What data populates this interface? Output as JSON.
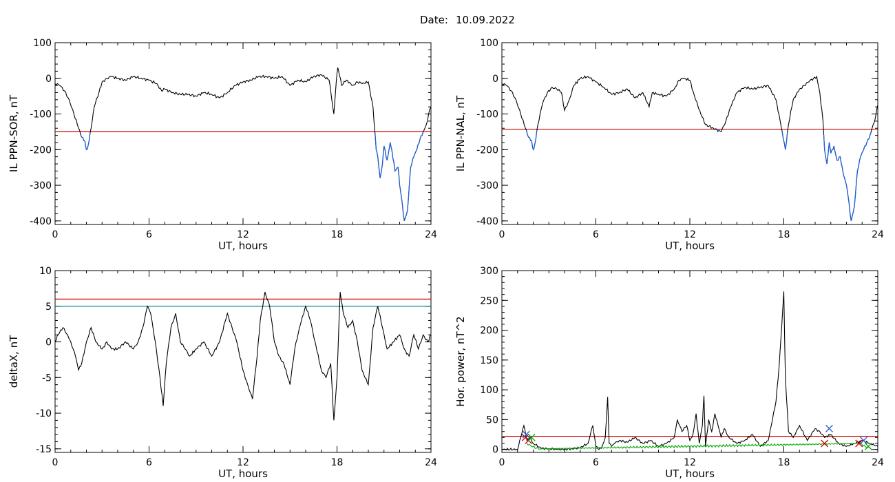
{
  "header": {
    "date_label": "Date:",
    "date_value": "10.09.2022"
  },
  "chart_data": [
    {
      "type": "line",
      "ylabel": "IL PPN-SOR, nT",
      "xlabel": "UT, hours",
      "xlim": [
        0,
        24
      ],
      "ylim": [
        -410,
        100
      ],
      "xticks": [
        0,
        6,
        12,
        18,
        24
      ],
      "yticks": [
        100,
        0,
        -100,
        -200,
        -300,
        -400
      ],
      "threshold": {
        "value": -150,
        "color": "#cc0000"
      },
      "highlight_color": "#1f5fd6",
      "series": [
        {
          "color": "#000000",
          "highlight_below": -150,
          "x": [
            0,
            0.3,
            0.6,
            0.9,
            1.2,
            1.5,
            1.7,
            1.9,
            2.0,
            2.1,
            2.3,
            2.5,
            2.8,
            3.0,
            3.3,
            3.6,
            4.0,
            4.5,
            5.0,
            5.5,
            6.0,
            6.5,
            6.8,
            7.0,
            7.5,
            8.0,
            8.5,
            9.0,
            9.5,
            10.0,
            10.5,
            11.0,
            11.5,
            12.0,
            12.5,
            13.0,
            13.5,
            14.0,
            14.5,
            15.0,
            15.5,
            16.0,
            16.5,
            17.0,
            17.5,
            17.8,
            17.95,
            18.05,
            18.15,
            18.3,
            18.6,
            19.0,
            19.3,
            19.6,
            20.0,
            20.3,
            20.5,
            20.6,
            20.75,
            20.9,
            21.0,
            21.2,
            21.4,
            21.5,
            21.7,
            21.9,
            22.0,
            22.1,
            22.3,
            22.5,
            22.7,
            22.9,
            23.1,
            23.3,
            23.5,
            23.7,
            23.85,
            24.0
          ],
          "y": [
            -15,
            -20,
            -35,
            -60,
            -100,
            -140,
            -165,
            -175,
            -200,
            -190,
            -140,
            -80,
            -40,
            -10,
            0,
            5,
            0,
            -5,
            5,
            0,
            -5,
            -15,
            -35,
            -30,
            -40,
            -45,
            -45,
            -50,
            -40,
            -45,
            -55,
            -40,
            -20,
            -10,
            -5,
            5,
            5,
            0,
            5,
            -20,
            -5,
            -10,
            5,
            10,
            -5,
            -100,
            -10,
            30,
            10,
            -20,
            -5,
            -20,
            -10,
            -15,
            -10,
            -80,
            -200,
            -220,
            -280,
            -240,
            -190,
            -230,
            -180,
            -200,
            -260,
            -250,
            -300,
            -330,
            -400,
            -370,
            -250,
            -220,
            -200,
            -170,
            -150,
            -130,
            -100,
            -80
          ]
        }
      ]
    },
    {
      "type": "line",
      "ylabel": "IL PPN-NAL, nT",
      "xlabel": "UT, hours",
      "xlim": [
        0,
        24
      ],
      "ylim": [
        -410,
        100
      ],
      "xticks": [
        0,
        6,
        12,
        18,
        24
      ],
      "yticks": [
        100,
        0,
        -100,
        -200,
        -300,
        -400
      ],
      "threshold": {
        "value": -143,
        "color": "#cc0000"
      },
      "highlight_color": "#1f5fd6",
      "series": [
        {
          "color": "#000000",
          "highlight_below": -143,
          "x": [
            0,
            0.3,
            0.6,
            0.9,
            1.2,
            1.5,
            1.7,
            1.9,
            2.0,
            2.1,
            2.3,
            2.6,
            2.9,
            3.2,
            3.5,
            3.8,
            4.0,
            4.3,
            4.6,
            5.0,
            5.5,
            6.0,
            6.5,
            7.0,
            7.5,
            8.0,
            8.5,
            9.0,
            9.4,
            9.6,
            10.0,
            10.5,
            11.0,
            11.3,
            11.6,
            12.0,
            12.3,
            12.7,
            13.0,
            13.5,
            14.0,
            14.3,
            14.6,
            15.0,
            15.5,
            16.0,
            16.5,
            17.0,
            17.5,
            17.9,
            18.1,
            18.3,
            18.6,
            19.0,
            19.3,
            19.6,
            19.9,
            20.1,
            20.3,
            20.5,
            20.6,
            20.75,
            20.9,
            21.0,
            21.2,
            21.4,
            21.6,
            21.8,
            22.0,
            22.1,
            22.3,
            22.5,
            22.7,
            22.9,
            23.1,
            23.3,
            23.5,
            23.7,
            23.85,
            24.0
          ],
          "y": [
            -15,
            -20,
            -35,
            -60,
            -100,
            -140,
            -165,
            -175,
            -200,
            -185,
            -130,
            -70,
            -40,
            -25,
            -30,
            -40,
            -90,
            -60,
            -20,
            0,
            5,
            -10,
            -25,
            -45,
            -40,
            -30,
            -55,
            -40,
            -80,
            -40,
            -45,
            -50,
            -30,
            -5,
            0,
            -5,
            -50,
            -100,
            -130,
            -140,
            -150,
            -120,
            -80,
            -40,
            -25,
            -30,
            -25,
            -20,
            -60,
            -150,
            -200,
            -130,
            -60,
            -30,
            -20,
            -10,
            0,
            5,
            -40,
            -120,
            -200,
            -240,
            -180,
            -210,
            -190,
            -230,
            -220,
            -270,
            -300,
            -330,
            -400,
            -360,
            -260,
            -220,
            -200,
            -180,
            -160,
            -130,
            -110,
            -75
          ]
        }
      ]
    },
    {
      "type": "line",
      "ylabel": "deltaX, nT",
      "xlabel": "UT, hours",
      "xlim": [
        0,
        24
      ],
      "ylim": [
        -15.5,
        10
      ],
      "xticks": [
        0,
        6,
        12,
        18,
        24
      ],
      "yticks": [
        10,
        5,
        0,
        -5,
        -10,
        -15
      ],
      "threshold": {
        "value": 6,
        "color": "#cc0000"
      },
      "threshold2": {
        "value": 5,
        "color": "#008b8b"
      },
      "series": [
        {
          "color": "#000000",
          "x": [
            0,
            0.2,
            0.5,
            0.8,
            1.0,
            1.3,
            1.5,
            1.7,
            2.0,
            2.3,
            2.6,
            3.0,
            3.3,
            3.6,
            4.0,
            4.5,
            5.0,
            5.3,
            5.6,
            5.9,
            6.1,
            6.4,
            6.7,
            6.9,
            7.1,
            7.4,
            7.7,
            8.0,
            8.3,
            8.6,
            9.0,
            9.5,
            10.0,
            10.5,
            11.0,
            11.3,
            11.6,
            12.0,
            12.3,
            12.6,
            12.9,
            13.1,
            13.4,
            13.7,
            14.0,
            14.3,
            14.6,
            15.0,
            15.3,
            15.6,
            16.0,
            16.3,
            16.6,
            17.0,
            17.3,
            17.6,
            17.8,
            18.0,
            18.2,
            18.4,
            18.7,
            19.0,
            19.3,
            19.6,
            20.0,
            20.3,
            20.6,
            20.9,
            21.2,
            21.6,
            22.0,
            22.3,
            22.6,
            22.9,
            23.2,
            23.5,
            23.8,
            24.0
          ],
          "y": [
            0,
            1,
            2,
            1,
            0,
            -2,
            -4,
            -3,
            0,
            2,
            0,
            -1,
            0,
            -1,
            -1,
            0,
            -1,
            0,
            2,
            5,
            4,
            0,
            -5,
            -9,
            -3,
            2,
            4,
            0,
            -1,
            -2,
            -1,
            0,
            -2,
            0,
            4,
            2,
            0,
            -4,
            -6,
            -8,
            -2,
            3,
            7,
            5,
            0,
            -2,
            -3,
            -6,
            -1,
            2,
            5,
            3,
            0,
            -4,
            -5,
            -3,
            -11,
            -5,
            7,
            4,
            2,
            3,
            0,
            -4,
            -6,
            2,
            5,
            2,
            -1,
            0,
            1,
            -1,
            -2,
            1,
            -1,
            1,
            0,
            1
          ]
        }
      ]
    },
    {
      "type": "line",
      "ylabel": "Hor. power, nT^2",
      "xlabel": "UT, hours",
      "xlim": [
        0,
        24
      ],
      "ylim": [
        -5,
        300
      ],
      "xticks": [
        0,
        6,
        12,
        18,
        24
      ],
      "yticks": [
        300,
        250,
        200,
        150,
        100,
        50,
        0
      ],
      "threshold": {
        "value": 22,
        "color": "#cc0000"
      },
      "series": [
        {
          "color": "#000000",
          "x": [
            0,
            1.0,
            1.4,
            1.6,
            1.8,
            2.0,
            2.5,
            3.0,
            3.5,
            4.0,
            4.5,
            5.0,
            5.5,
            5.8,
            6.0,
            6.2,
            6.4,
            6.6,
            6.75,
            6.85,
            7.0,
            7.2,
            7.5,
            8.0,
            8.5,
            9.0,
            9.5,
            10.0,
            10.5,
            11.0,
            11.2,
            11.5,
            11.8,
            12.0,
            12.2,
            12.4,
            12.6,
            12.8,
            12.9,
            13.0,
            13.2,
            13.4,
            13.6,
            13.8,
            14.0,
            14.2,
            14.5,
            15.0,
            15.5,
            16.0,
            16.5,
            17.0,
            17.2,
            17.5,
            17.7,
            17.85,
            18.0,
            18.1,
            18.3,
            18.6,
            19.0,
            19.5,
            20.0,
            20.3,
            20.6,
            21.0,
            21.5,
            22.0,
            22.5,
            23.0,
            23.5,
            24.0
          ],
          "y": [
            0,
            0,
            40,
            15,
            20,
            10,
            2,
            1,
            0,
            0,
            1,
            3,
            10,
            40,
            5,
            0,
            5,
            20,
            88,
            10,
            5,
            10,
            15,
            12,
            20,
            10,
            15,
            5,
            10,
            20,
            50,
            30,
            40,
            15,
            25,
            60,
            10,
            40,
            90,
            5,
            50,
            30,
            60,
            40,
            20,
            35,
            20,
            10,
            15,
            25,
            5,
            15,
            40,
            80,
            140,
            200,
            265,
            120,
            30,
            20,
            40,
            15,
            35,
            30,
            20,
            25,
            10,
            5,
            10,
            15,
            10,
            5
          ]
        },
        {
          "color": "#00aa00",
          "x": [
            1.6,
            1.9,
            2.2,
            2.5,
            22.9,
            23.2,
            23.5
          ],
          "y": [
            10,
            5,
            2,
            1,
            10,
            5,
            2
          ]
        }
      ],
      "markers": [
        {
          "x": 1.5,
          "y": 20,
          "color": "#cc0000"
        },
        {
          "x": 1.7,
          "y": 15,
          "color": "#cc0000"
        },
        {
          "x": 1.9,
          "y": 20,
          "color": "#00aa00"
        },
        {
          "x": 1.55,
          "y": 25,
          "color": "#1f5fd6"
        },
        {
          "x": 20.6,
          "y": 10,
          "color": "#cc0000"
        },
        {
          "x": 20.9,
          "y": 35,
          "color": "#1f5fd6"
        },
        {
          "x": 22.8,
          "y": 10,
          "color": "#cc0000"
        },
        {
          "x": 23.1,
          "y": 15,
          "color": "#1f5fd6"
        },
        {
          "x": 23.4,
          "y": 5,
          "color": "#00aa00"
        }
      ]
    }
  ]
}
